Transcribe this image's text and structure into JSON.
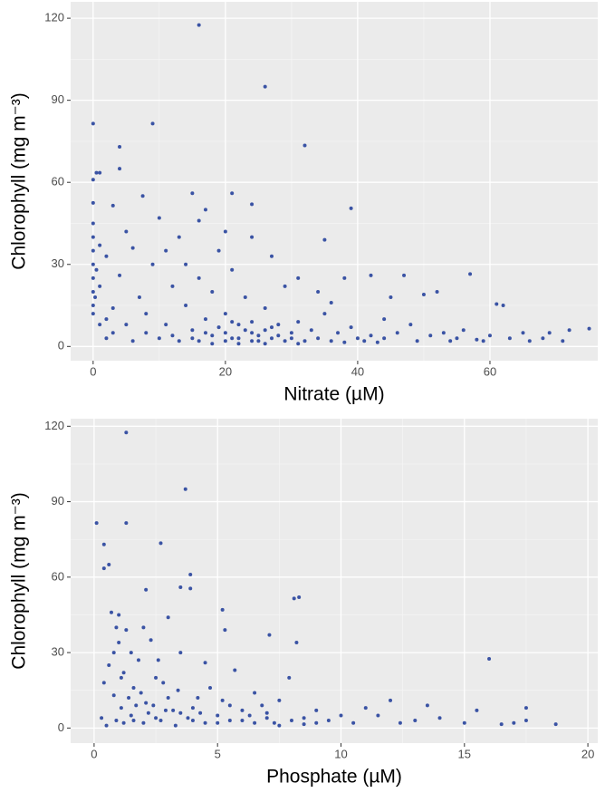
{
  "chart_data": [
    {
      "type": "scatter",
      "x_label": "Nitrate (µM)",
      "y_label": "Chlorophyll (mg m⁻³)",
      "color": "#3a53a4",
      "grid": true,
      "xlim": [
        -3.4,
        76.3
      ],
      "ylim": [
        -5.2,
        126
      ],
      "xticks": [
        0,
        20,
        40,
        60
      ],
      "yticks": [
        0,
        30,
        60,
        90,
        120
      ],
      "x": [
        16,
        26,
        0,
        9,
        32,
        4,
        4,
        0.5,
        1,
        0,
        21,
        15,
        7.5,
        16,
        39,
        17,
        24,
        3,
        0,
        35,
        57,
        61,
        62,
        75,
        72,
        71,
        68,
        65,
        60,
        55,
        52,
        50,
        47,
        45,
        42,
        38,
        44,
        48,
        53,
        58,
        0,
        0,
        0,
        0,
        0,
        0,
        0,
        0,
        0.3,
        0.5,
        1,
        1,
        2,
        2,
        3,
        4,
        5,
        6,
        7,
        8,
        9,
        10,
        11,
        12,
        13,
        14,
        15,
        16,
        17,
        18,
        19,
        20,
        21,
        22,
        23,
        24,
        25,
        26,
        27,
        28,
        29,
        30,
        31,
        32,
        33,
        34,
        35,
        36,
        37,
        38,
        39,
        40,
        41,
        42,
        43,
        44,
        46,
        49,
        51,
        54,
        56,
        59,
        63,
        66,
        69,
        15,
        16,
        17,
        18,
        19,
        20,
        20,
        21,
        22,
        22,
        23,
        24,
        24,
        25,
        26,
        26,
        27,
        28,
        29,
        30,
        31,
        12,
        13,
        10,
        8,
        6,
        5,
        3,
        2,
        1,
        14,
        18,
        21,
        27,
        31,
        34,
        36,
        24,
        20,
        11
      ],
      "y": [
        117.5,
        95,
        81.5,
        81.5,
        73.5,
        73,
        65,
        63.5,
        63.5,
        61,
        56,
        56,
        55,
        46,
        50.5,
        50,
        52,
        51.5,
        52.5,
        39,
        26.5,
        15.5,
        15,
        6.5,
        6,
        2,
        3,
        5,
        4,
        3,
        20,
        19,
        26,
        18,
        26,
        25,
        10,
        8,
        5,
        2.5,
        45,
        40,
        35,
        30,
        25,
        20,
        15,
        12,
        18,
        28,
        37,
        22,
        33,
        10,
        5,
        26,
        42,
        36,
        18,
        12,
        30,
        47,
        8,
        22,
        40,
        15,
        6,
        25,
        10,
        4,
        35,
        12,
        3,
        8,
        18,
        5,
        2,
        14,
        7,
        4,
        22,
        3,
        9,
        2,
        6,
        3,
        12,
        2,
        5,
        1.5,
        7,
        3,
        2,
        4,
        1.5,
        3,
        5,
        2,
        4,
        2,
        6,
        2,
        3,
        2,
        5,
        3,
        2,
        5,
        1,
        7,
        2,
        5,
        9,
        3,
        1,
        6,
        2,
        9,
        4,
        1,
        6,
        3,
        8,
        2,
        5,
        1,
        4,
        2,
        3,
        5,
        2,
        8,
        14,
        3,
        8,
        30,
        20,
        28,
        33,
        25,
        20,
        16,
        40,
        42,
        35
      ]
    },
    {
      "type": "scatter",
      "x_label": "Phosphate (µM)",
      "y_label": "Chlorophyll (mg m⁻³)",
      "color": "#3a53a4",
      "grid": true,
      "xlim": [
        -0.95,
        20.4
      ],
      "ylim": [
        -6,
        123
      ],
      "xticks": [
        0,
        5,
        10,
        15,
        20
      ],
      "yticks": [
        0,
        30,
        60,
        90,
        120
      ],
      "x": [
        1.3,
        3.7,
        0.1,
        1.3,
        2.7,
        0.4,
        0.6,
        0.4,
        3.9,
        3.5,
        2.1,
        3.9,
        5.2,
        5.3,
        8.3,
        8.1,
        7.1,
        8.2,
        16,
        18.7,
        17.5,
        17.5,
        17,
        16.5,
        15.5,
        15,
        14,
        13.5,
        13,
        12.4,
        12,
        11.5,
        11,
        10.5,
        10,
        9.5,
        9,
        8.5,
        7.9,
        7.5,
        7,
        6.5,
        6,
        5.7,
        5.5,
        5,
        4.5,
        4.2,
        4,
        3.5,
        3.2,
        3,
        2.8,
        2.5,
        2.3,
        2.1,
        2,
        1.8,
        1.6,
        1.5,
        1.3,
        1.2,
        1.1,
        1,
        0.9,
        0.8,
        0.7,
        0.6,
        0.5,
        0.3,
        0.4,
        1,
        1.5,
        2,
        2.5,
        3,
        3.5,
        4,
        4.5,
        5,
        5.5,
        6,
        6.5,
        7,
        7.5,
        8,
        8.5,
        9,
        1.2,
        1.7,
        2.2,
        2.7,
        3.3,
        3.8,
        4.3,
        1.4,
        1.9,
        2.4,
        2.9,
        3.4,
        0.8,
        1.1,
        1.6,
        2.6,
        4.7,
        5.2,
        6.3,
        6.8,
        7.3,
        0.9
      ],
      "y": [
        117.5,
        95,
        81.5,
        81.5,
        73.5,
        73,
        65,
        63.5,
        61,
        56,
        55,
        55.5,
        47,
        39,
        52,
        51.5,
        37,
        34,
        27.5,
        1.5,
        8,
        3,
        2,
        1.5,
        7,
        2,
        4,
        9,
        3,
        2,
        11,
        5,
        8,
        2,
        5,
        3,
        7,
        4,
        20,
        11,
        6,
        14,
        3,
        23,
        9,
        2,
        26,
        12,
        3,
        30,
        7,
        44,
        18,
        4,
        35,
        10,
        2,
        27,
        16,
        5,
        39,
        22,
        8,
        34,
        3,
        13,
        46,
        25,
        1,
        4,
        18,
        45,
        30,
        40,
        20,
        12,
        6,
        8,
        2,
        5,
        3,
        7,
        2,
        4,
        1,
        3,
        1.5,
        2,
        2,
        9,
        6,
        3,
        1,
        4,
        6,
        12,
        14,
        9,
        7,
        15,
        30,
        20,
        3,
        27,
        16,
        11,
        5,
        9,
        2,
        40
      ]
    }
  ]
}
